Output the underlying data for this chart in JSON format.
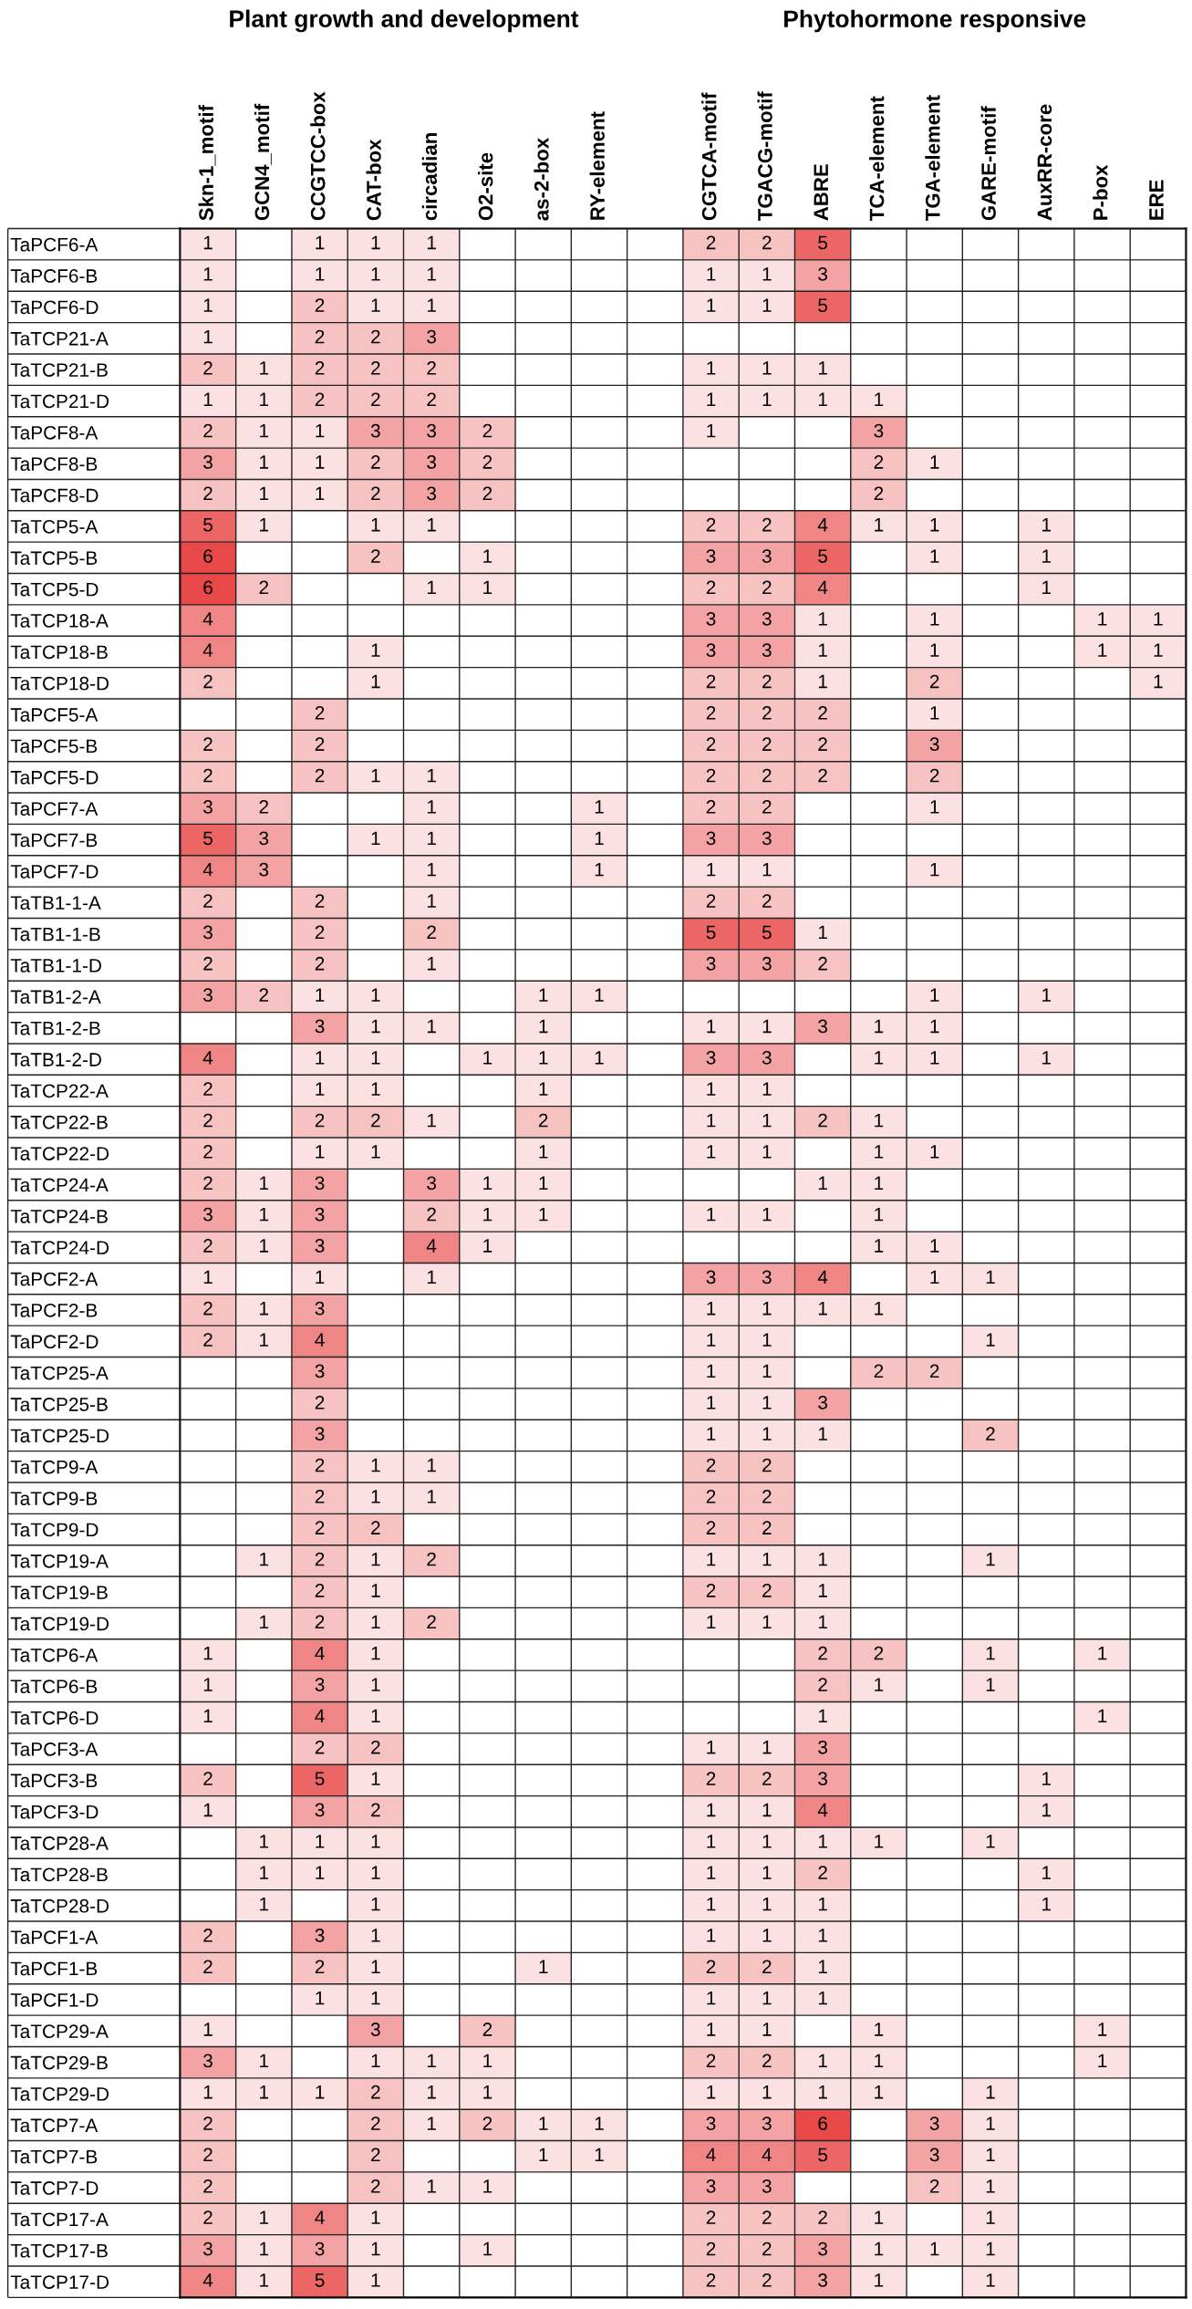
{
  "chart_data": {
    "type": "heatmap",
    "data_labels": true,
    "grid": true,
    "annotations": [
      "Plant growth and development",
      "Phytohormone responsive"
    ],
    "categories": [
      "Skn-1_motif",
      "GCN4_motif",
      "CCGTCC-box",
      "CAT-box",
      "circadian",
      "O2-site",
      "as-2-box",
      "RY-element",
      null,
      "CGTCA-motif",
      "TGACG-motif",
      "ABRE",
      "TCA-element",
      "TGA-element",
      "GARE-motif",
      "AuxRR-core",
      "P-box",
      "ERE"
    ],
    "y_categories": [
      "TaPCF6-A",
      "TaPCF6-B",
      "TaPCF6-D",
      "TaTCP21-A",
      "TaTCP21-B",
      "TaTCP21-D",
      "TaPCF8-A",
      "TaPCF8-B",
      "TaPCF8-D",
      "TaTCP5-A",
      "TaTCP5-B",
      "TaTCP5-D",
      "TaTCP18-A",
      "TaTCP18-B",
      "TaTCP18-D",
      "TaPCF5-A",
      "TaPCF5-B",
      "TaPCF5-D",
      "TaPCF7-A",
      "TaPCF7-B",
      "TaPCF7-D",
      "TaTB1-1-A",
      "TaTB1-1-B",
      "TaTB1-1-D",
      "TaTB1-2-A",
      "TaTB1-2-B",
      "TaTB1-2-D",
      "TaTCP22-A",
      "TaTCP22-B",
      "TaTCP22-D",
      "TaTCP24-A",
      "TaTCP24-B",
      "TaTCP24-D",
      "TaPCF2-A",
      "TaPCF2-B",
      "TaPCF2-D",
      "TaTCP25-A",
      "TaTCP25-B",
      "TaTCP25-D",
      "TaTCP9-A",
      "TaTCP9-B",
      "TaTCP9-D",
      "TaTCP19-A",
      "TaTCP19-B",
      "TaTCP19-D",
      "TaTCP6-A",
      "TaTCP6-B",
      "TaTCP6-D",
      "TaPCF3-A",
      "TaPCF3-B",
      "TaPCF3-D",
      "TaTCP28-A",
      "TaTCP28-B",
      "TaTCP28-D",
      "TaPCF1-A",
      "TaPCF1-B",
      "TaPCF1-D",
      "TaTCP29-A",
      "TaTCP29-B",
      "TaTCP29-D",
      "TaTCP7-A",
      "TaTCP7-B",
      "TaTCP7-D",
      "TaTCP17-A",
      "TaTCP17-B",
      "TaTCP17-D"
    ],
    "cells": [
      [
        1,
        null,
        1,
        1,
        1,
        null,
        null,
        null,
        null,
        2,
        2,
        5,
        null,
        null,
        null,
        null,
        null,
        null
      ],
      [
        1,
        null,
        1,
        1,
        1,
        null,
        null,
        null,
        null,
        1,
        1,
        3,
        null,
        null,
        null,
        null,
        null,
        null
      ],
      [
        1,
        null,
        2,
        1,
        1,
        null,
        null,
        null,
        null,
        1,
        1,
        5,
        null,
        null,
        null,
        null,
        null,
        null
      ],
      [
        1,
        null,
        2,
        2,
        3,
        null,
        null,
        null,
        null,
        null,
        null,
        null,
        null,
        null,
        null,
        null,
        null,
        null
      ],
      [
        2,
        1,
        2,
        2,
        2,
        null,
        null,
        null,
        null,
        1,
        1,
        1,
        null,
        null,
        null,
        null,
        null,
        null
      ],
      [
        1,
        1,
        2,
        2,
        2,
        null,
        null,
        null,
        null,
        1,
        1,
        1,
        1,
        null,
        null,
        null,
        null,
        null
      ],
      [
        2,
        1,
        1,
        3,
        3,
        2,
        null,
        null,
        null,
        1,
        null,
        null,
        3,
        null,
        null,
        null,
        null,
        null
      ],
      [
        3,
        1,
        1,
        2,
        3,
        2,
        null,
        null,
        null,
        null,
        null,
        null,
        2,
        1,
        null,
        null,
        null,
        null
      ],
      [
        2,
        1,
        1,
        2,
        3,
        2,
        null,
        null,
        null,
        null,
        null,
        null,
        2,
        null,
        null,
        null,
        null,
        null
      ],
      [
        5,
        1,
        null,
        1,
        1,
        null,
        null,
        null,
        null,
        2,
        2,
        4,
        1,
        1,
        null,
        1,
        null,
        null
      ],
      [
        6,
        null,
        null,
        2,
        null,
        1,
        null,
        null,
        null,
        3,
        3,
        5,
        null,
        1,
        null,
        1,
        null,
        null
      ],
      [
        6,
        2,
        null,
        null,
        1,
        1,
        null,
        null,
        null,
        2,
        2,
        4,
        null,
        null,
        null,
        1,
        null,
        null
      ],
      [
        4,
        null,
        null,
        null,
        null,
        null,
        null,
        null,
        null,
        3,
        3,
        1,
        null,
        1,
        null,
        null,
        1,
        1
      ],
      [
        4,
        null,
        null,
        1,
        null,
        null,
        null,
        null,
        null,
        3,
        3,
        1,
        null,
        1,
        null,
        null,
        1,
        1
      ],
      [
        2,
        null,
        null,
        1,
        null,
        null,
        null,
        null,
        null,
        2,
        2,
        1,
        null,
        2,
        null,
        null,
        null,
        1
      ],
      [
        null,
        null,
        2,
        null,
        null,
        null,
        null,
        null,
        null,
        2,
        2,
        2,
        null,
        1,
        null,
        null,
        null,
        null
      ],
      [
        2,
        null,
        2,
        null,
        null,
        null,
        null,
        null,
        null,
        2,
        2,
        2,
        null,
        3,
        null,
        null,
        null,
        null
      ],
      [
        2,
        null,
        2,
        1,
        1,
        null,
        null,
        null,
        null,
        2,
        2,
        2,
        null,
        2,
        null,
        null,
        null,
        null
      ],
      [
        3,
        2,
        null,
        null,
        1,
        null,
        null,
        1,
        null,
        2,
        2,
        null,
        null,
        1,
        null,
        null,
        null,
        null
      ],
      [
        5,
        3,
        null,
        1,
        1,
        null,
        null,
        1,
        null,
        3,
        3,
        null,
        null,
        null,
        null,
        null,
        null,
        null
      ],
      [
        4,
        3,
        null,
        null,
        1,
        null,
        null,
        1,
        null,
        1,
        1,
        null,
        null,
        1,
        null,
        null,
        null,
        null
      ],
      [
        2,
        null,
        2,
        null,
        1,
        null,
        null,
        null,
        null,
        2,
        2,
        null,
        null,
        null,
        null,
        null,
        null,
        null
      ],
      [
        3,
        null,
        2,
        null,
        2,
        null,
        null,
        null,
        null,
        5,
        5,
        1,
        null,
        null,
        null,
        null,
        null,
        null
      ],
      [
        2,
        null,
        2,
        null,
        1,
        null,
        null,
        null,
        null,
        3,
        3,
        2,
        null,
        null,
        null,
        null,
        null,
        null
      ],
      [
        3,
        2,
        1,
        1,
        null,
        null,
        1,
        1,
        null,
        null,
        null,
        null,
        null,
        1,
        null,
        1,
        null,
        null
      ],
      [
        null,
        null,
        3,
        1,
        1,
        null,
        1,
        null,
        null,
        1,
        1,
        3,
        1,
        1,
        null,
        null,
        null,
        null
      ],
      [
        4,
        null,
        1,
        1,
        null,
        1,
        1,
        1,
        null,
        3,
        3,
        null,
        1,
        1,
        null,
        1,
        null,
        null
      ],
      [
        2,
        null,
        1,
        1,
        null,
        null,
        1,
        null,
        null,
        1,
        1,
        null,
        null,
        null,
        null,
        null,
        null,
        null
      ],
      [
        2,
        null,
        2,
        2,
        1,
        null,
        2,
        null,
        null,
        1,
        1,
        2,
        1,
        null,
        null,
        null,
        null,
        null
      ],
      [
        2,
        null,
        1,
        1,
        null,
        null,
        1,
        null,
        null,
        1,
        1,
        null,
        1,
        1,
        null,
        null,
        null,
        null
      ],
      [
        2,
        1,
        3,
        null,
        3,
        1,
        1,
        null,
        null,
        null,
        null,
        1,
        1,
        null,
        null,
        null,
        null,
        null
      ],
      [
        3,
        1,
        3,
        null,
        2,
        1,
        1,
        null,
        null,
        1,
        1,
        null,
        1,
        null,
        null,
        null,
        null,
        null
      ],
      [
        2,
        1,
        3,
        null,
        4,
        1,
        null,
        null,
        null,
        null,
        null,
        null,
        1,
        1,
        null,
        null,
        null,
        null
      ],
      [
        1,
        null,
        1,
        null,
        1,
        null,
        null,
        null,
        null,
        3,
        3,
        4,
        null,
        1,
        1,
        null,
        null,
        null
      ],
      [
        2,
        1,
        3,
        null,
        null,
        null,
        null,
        null,
        null,
        1,
        1,
        1,
        1,
        null,
        null,
        null,
        null,
        null
      ],
      [
        2,
        1,
        4,
        null,
        null,
        null,
        null,
        null,
        null,
        1,
        1,
        null,
        null,
        null,
        1,
        null,
        null,
        null
      ],
      [
        null,
        null,
        3,
        null,
        null,
        null,
        null,
        null,
        null,
        1,
        1,
        null,
        2,
        2,
        null,
        null,
        null,
        null
      ],
      [
        null,
        null,
        2,
        null,
        null,
        null,
        null,
        null,
        null,
        1,
        1,
        3,
        null,
        null,
        null,
        null,
        null,
        null
      ],
      [
        null,
        null,
        3,
        null,
        null,
        null,
        null,
        null,
        null,
        1,
        1,
        1,
        null,
        null,
        2,
        null,
        null,
        null
      ],
      [
        null,
        null,
        2,
        1,
        1,
        null,
        null,
        null,
        null,
        2,
        2,
        null,
        null,
        null,
        null,
        null,
        null,
        null
      ],
      [
        null,
        null,
        2,
        1,
        1,
        null,
        null,
        null,
        null,
        2,
        2,
        null,
        null,
        null,
        null,
        null,
        null,
        null
      ],
      [
        null,
        null,
        2,
        2,
        null,
        null,
        null,
        null,
        null,
        2,
        2,
        null,
        null,
        null,
        null,
        null,
        null,
        null
      ],
      [
        null,
        1,
        2,
        1,
        2,
        null,
        null,
        null,
        null,
        1,
        1,
        1,
        null,
        null,
        1,
        null,
        null,
        null
      ],
      [
        null,
        null,
        2,
        1,
        null,
        null,
        null,
        null,
        null,
        2,
        2,
        1,
        null,
        null,
        null,
        null,
        null,
        null
      ],
      [
        null,
        1,
        2,
        1,
        2,
        null,
        null,
        null,
        null,
        1,
        1,
        1,
        null,
        null,
        null,
        null,
        null,
        null
      ],
      [
        1,
        null,
        4,
        1,
        null,
        null,
        null,
        null,
        null,
        null,
        null,
        2,
        2,
        null,
        1,
        null,
        1,
        null
      ],
      [
        1,
        null,
        3,
        1,
        null,
        null,
        null,
        null,
        null,
        null,
        null,
        2,
        1,
        null,
        1,
        null,
        null,
        null
      ],
      [
        1,
        null,
        4,
        1,
        null,
        null,
        null,
        null,
        null,
        null,
        null,
        1,
        null,
        null,
        null,
        null,
        1,
        null
      ],
      [
        null,
        null,
        2,
        2,
        null,
        null,
        null,
        null,
        null,
        1,
        1,
        3,
        null,
        null,
        null,
        null,
        null,
        null
      ],
      [
        2,
        null,
        5,
        1,
        null,
        null,
        null,
        null,
        null,
        2,
        2,
        3,
        null,
        null,
        null,
        1,
        null,
        null
      ],
      [
        1,
        null,
        3,
        2,
        null,
        null,
        null,
        null,
        null,
        1,
        1,
        4,
        null,
        null,
        null,
        1,
        null,
        null
      ],
      [
        null,
        1,
        1,
        1,
        null,
        null,
        null,
        null,
        null,
        1,
        1,
        1,
        1,
        null,
        1,
        null,
        null,
        null
      ],
      [
        null,
        1,
        1,
        1,
        null,
        null,
        null,
        null,
        null,
        1,
        1,
        2,
        null,
        null,
        null,
        1,
        null,
        null
      ],
      [
        null,
        1,
        null,
        1,
        null,
        null,
        null,
        null,
        null,
        1,
        1,
        1,
        null,
        null,
        null,
        1,
        null,
        null
      ],
      [
        2,
        null,
        3,
        1,
        null,
        null,
        null,
        null,
        null,
        1,
        1,
        1,
        null,
        null,
        null,
        null,
        null,
        null
      ],
      [
        2,
        null,
        2,
        1,
        null,
        null,
        1,
        null,
        null,
        2,
        2,
        1,
        null,
        null,
        null,
        null,
        null,
        null
      ],
      [
        null,
        null,
        1,
        1,
        null,
        null,
        null,
        null,
        null,
        1,
        1,
        1,
        null,
        null,
        null,
        null,
        null,
        null
      ],
      [
        1,
        null,
        null,
        3,
        null,
        2,
        null,
        null,
        null,
        1,
        1,
        null,
        1,
        null,
        null,
        null,
        1,
        null
      ],
      [
        3,
        1,
        null,
        1,
        1,
        1,
        null,
        null,
        null,
        2,
        2,
        1,
        1,
        null,
        null,
        null,
        1,
        null
      ],
      [
        1,
        1,
        1,
        2,
        1,
        1,
        null,
        null,
        null,
        1,
        1,
        1,
        1,
        null,
        1,
        null,
        null,
        null
      ],
      [
        2,
        null,
        null,
        2,
        1,
        2,
        1,
        1,
        null,
        3,
        3,
        6,
        null,
        3,
        1,
        null,
        null,
        null
      ],
      [
        2,
        null,
        null,
        2,
        null,
        null,
        1,
        1,
        null,
        4,
        4,
        5,
        null,
        3,
        1,
        null,
        null,
        null
      ],
      [
        2,
        null,
        null,
        2,
        1,
        1,
        null,
        null,
        null,
        3,
        3,
        null,
        null,
        2,
        1,
        null,
        null,
        null
      ],
      [
        2,
        1,
        4,
        1,
        null,
        null,
        null,
        null,
        null,
        2,
        2,
        2,
        1,
        null,
        1,
        null,
        null,
        null
      ],
      [
        3,
        1,
        3,
        1,
        null,
        1,
        null,
        null,
        null,
        2,
        2,
        3,
        1,
        1,
        1,
        null,
        null,
        null
      ],
      [
        4,
        1,
        5,
        1,
        null,
        null,
        null,
        null,
        null,
        2,
        2,
        3,
        1,
        null,
        1,
        null,
        null,
        null
      ]
    ]
  }
}
